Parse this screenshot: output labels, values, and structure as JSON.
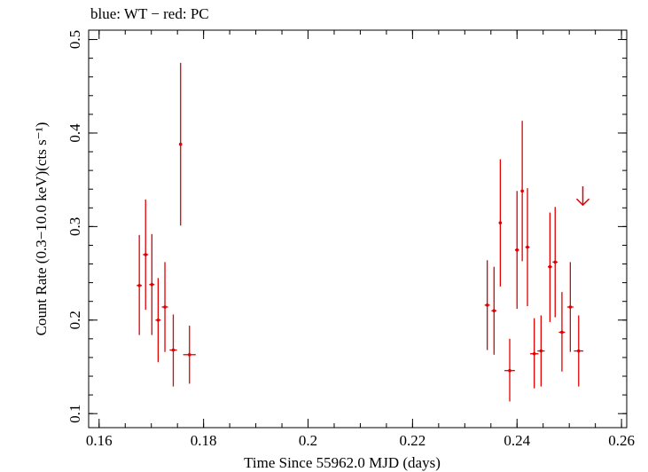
{
  "chart_data": {
    "type": "scatter",
    "title": "blue: WT − red: PC",
    "xlabel": "Time Since 55962.0 MJD (days)",
    "ylabel": "Count Rate (0.3−10.0 keV)(cts s⁻¹)",
    "xlim": [
      0.158,
      0.261
    ],
    "ylim": [
      0.085,
      0.51
    ],
    "x_ticks": [
      {
        "value": 0.16,
        "label": "0.16"
      },
      {
        "value": 0.18,
        "label": "0.18"
      },
      {
        "value": 0.2,
        "label": "0.2"
      },
      {
        "value": 0.22,
        "label": "0.22"
      },
      {
        "value": 0.24,
        "label": "0.24"
      },
      {
        "value": 0.26,
        "label": "0.26"
      }
    ],
    "y_ticks": [
      {
        "value": 0.1,
        "label": "0.1"
      },
      {
        "value": 0.2,
        "label": "0.2"
      },
      {
        "value": 0.3,
        "label": "0.3"
      },
      {
        "value": 0.4,
        "label": "0.4"
      },
      {
        "value": 0.5,
        "label": "0.5"
      }
    ],
    "x_minor_step": 0.005,
    "y_minor_step": 0.02,
    "grid": false,
    "series": [
      {
        "color": "#e00000",
        "points": [
          {
            "x": 0.1677,
            "y": 0.237,
            "xerr": 0.0005,
            "ylo": 0.184,
            "yhi": 0.291
          },
          {
            "x": 0.1689,
            "y": 0.27,
            "xerr": 0.0005,
            "ylo": 0.211,
            "yhi": 0.329
          },
          {
            "x": 0.1701,
            "y": 0.238,
            "xerr": 0.0005,
            "ylo": 0.184,
            "yhi": 0.292
          },
          {
            "x": 0.1713,
            "y": 0.2,
            "xerr": 0.0005,
            "ylo": 0.155,
            "yhi": 0.245
          },
          {
            "x": 0.1726,
            "y": 0.214,
            "xerr": 0.0006,
            "ylo": 0.166,
            "yhi": 0.262
          },
          {
            "x": 0.1742,
            "y": 0.168,
            "xerr": 0.0007,
            "ylo": 0.129,
            "yhi": 0.206
          },
          {
            "x": 0.1756,
            "y": 0.388,
            "xerr": 0.0002,
            "ylo": 0.301,
            "yhi": 0.475
          },
          {
            "x": 0.1773,
            "y": 0.163,
            "xerr": 0.0012,
            "ylo": 0.132,
            "yhi": 0.194
          },
          {
            "x": 0.2343,
            "y": 0.216,
            "xerr": 0.0005,
            "ylo": 0.168,
            "yhi": 0.264
          },
          {
            "x": 0.2356,
            "y": 0.21,
            "xerr": 0.0005,
            "ylo": 0.163,
            "yhi": 0.257
          },
          {
            "x": 0.2368,
            "y": 0.304,
            "xerr": 0.0003,
            "ylo": 0.236,
            "yhi": 0.372
          },
          {
            "x": 0.2386,
            "y": 0.146,
            "xerr": 0.001,
            "ylo": 0.113,
            "yhi": 0.18
          },
          {
            "x": 0.24,
            "y": 0.275,
            "xerr": 0.0004,
            "ylo": 0.212,
            "yhi": 0.338
          },
          {
            "x": 0.241,
            "y": 0.338,
            "xerr": 0.0003,
            "ylo": 0.263,
            "yhi": 0.413
          },
          {
            "x": 0.242,
            "y": 0.278,
            "xerr": 0.0004,
            "ylo": 0.215,
            "yhi": 0.341
          },
          {
            "x": 0.2433,
            "y": 0.164,
            "xerr": 0.0008,
            "ylo": 0.127,
            "yhi": 0.202
          },
          {
            "x": 0.2446,
            "y": 0.167,
            "xerr": 0.0007,
            "ylo": 0.129,
            "yhi": 0.205
          },
          {
            "x": 0.2463,
            "y": 0.257,
            "xerr": 0.0004,
            "ylo": 0.198,
            "yhi": 0.315
          },
          {
            "x": 0.2473,
            "y": 0.262,
            "xerr": 0.0005,
            "ylo": 0.203,
            "yhi": 0.321
          },
          {
            "x": 0.2486,
            "y": 0.187,
            "xerr": 0.0006,
            "ylo": 0.145,
            "yhi": 0.23
          },
          {
            "x": 0.2502,
            "y": 0.214,
            "xerr": 0.0006,
            "ylo": 0.166,
            "yhi": 0.262
          },
          {
            "x": 0.2518,
            "y": 0.167,
            "xerr": 0.0009,
            "ylo": 0.129,
            "yhi": 0.205
          }
        ]
      }
    ],
    "upper_limits": [
      {
        "x": 0.2526,
        "y": 0.343,
        "arrow_to": 0.323,
        "color": "#e00000"
      }
    ]
  }
}
